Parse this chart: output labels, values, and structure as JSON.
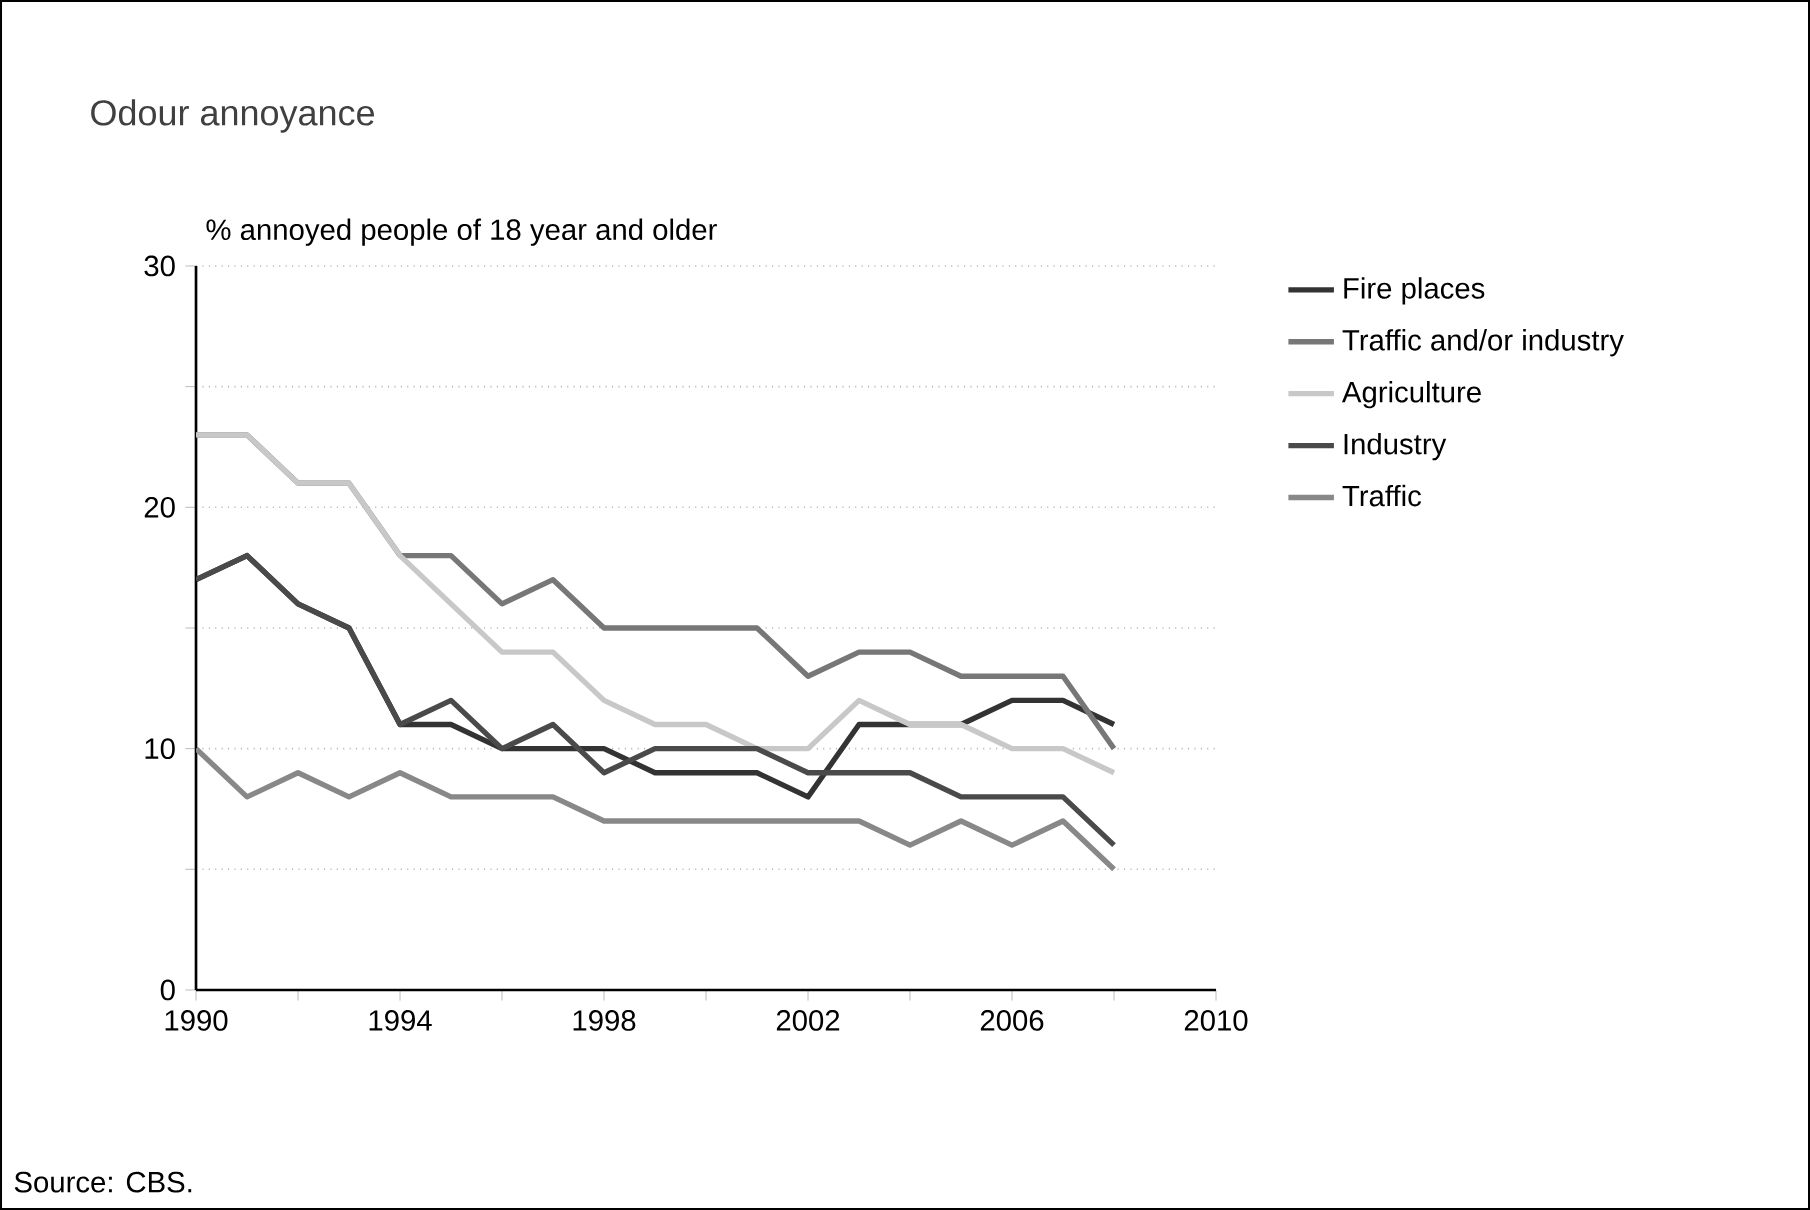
{
  "chart_data": {
    "type": "line",
    "title": "Odour annoyance",
    "ylabel": "% annoyed people of 18 year and older",
    "annotations": [
      "Source: CBS."
    ],
    "x": [
      1990,
      1991,
      1992,
      1993,
      1994,
      1995,
      1996,
      1997,
      1998,
      1999,
      2000,
      2001,
      2002,
      2003,
      2004,
      2005,
      2006,
      2007,
      2008
    ],
    "series": [
      {
        "name": "Fire places",
        "color": "#333333",
        "values": [
          17,
          18,
          16,
          15,
          11,
          11,
          10,
          10,
          10,
          9,
          9,
          9,
          8,
          11,
          11,
          11,
          12,
          12,
          11
        ]
      },
      {
        "name": "Traffic and/or industry",
        "color": "#777777",
        "values": [
          23,
          23,
          21,
          21,
          18,
          18,
          16,
          17,
          15,
          15,
          15,
          15,
          13,
          14,
          14,
          13,
          13,
          13,
          10
        ]
      },
      {
        "name": "Agriculture",
        "color": "#c8c8c8",
        "values": [
          23,
          23,
          21,
          21,
          18,
          16,
          14,
          14,
          12,
          11,
          11,
          10,
          10,
          12,
          11,
          11,
          10,
          10,
          9
        ]
      },
      {
        "name": "Industry",
        "color": "#4a4a4a",
        "values": [
          17,
          18,
          16,
          15,
          11,
          12,
          10,
          11,
          9,
          10,
          10,
          10,
          9,
          9,
          9,
          8,
          8,
          8,
          6
        ]
      },
      {
        "name": "Traffic",
        "color": "#888888",
        "values": [
          10,
          8,
          9,
          8,
          9,
          8,
          8,
          8,
          7,
          7,
          7,
          7,
          7,
          7,
          6,
          7,
          6,
          7,
          5
        ]
      }
    ],
    "xlim": [
      1990,
      2010
    ],
    "ylim": [
      0,
      30
    ],
    "xticks": [
      1990,
      {
        "value": 1992,
        "label": null
      },
      1994,
      {
        "value": 1996,
        "label": null
      },
      1998,
      {
        "value": 2000,
        "label": null
      },
      2002,
      {
        "value": 2004,
        "label": null
      },
      2006,
      {
        "value": 2008,
        "label": null
      },
      2010
    ],
    "yticks": [
      0,
      {
        "value": 5,
        "label": null
      },
      10,
      {
        "value": 15,
        "label": null
      },
      20,
      {
        "value": 25,
        "label": null
      },
      30
    ],
    "grid": "y",
    "legend": "right",
    "line_style": "solid",
    "marker": "none"
  }
}
